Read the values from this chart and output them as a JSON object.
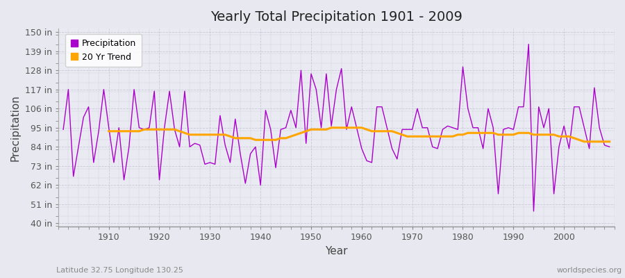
{
  "title": "Yearly Total Precipitation 1901 - 2009",
  "xlabel": "Year",
  "ylabel": "Precipitation",
  "subtitle_left": "Latitude 32.75 Longitude 130.25",
  "subtitle_right": "worldspecies.org",
  "years": [
    1901,
    1902,
    1903,
    1904,
    1905,
    1906,
    1907,
    1908,
    1909,
    1910,
    1911,
    1912,
    1913,
    1914,
    1915,
    1916,
    1917,
    1918,
    1919,
    1920,
    1921,
    1922,
    1923,
    1924,
    1925,
    1926,
    1927,
    1928,
    1929,
    1930,
    1931,
    1932,
    1933,
    1934,
    1935,
    1936,
    1937,
    1938,
    1939,
    1940,
    1941,
    1942,
    1943,
    1944,
    1945,
    1946,
    1947,
    1948,
    1949,
    1950,
    1951,
    1952,
    1953,
    1954,
    1955,
    1956,
    1957,
    1958,
    1959,
    1960,
    1961,
    1962,
    1963,
    1964,
    1965,
    1966,
    1967,
    1968,
    1969,
    1970,
    1971,
    1972,
    1973,
    1974,
    1975,
    1976,
    1977,
    1978,
    1979,
    1980,
    1981,
    1982,
    1983,
    1984,
    1985,
    1986,
    1987,
    1988,
    1989,
    1990,
    1991,
    1992,
    1993,
    1994,
    1995,
    1996,
    1997,
    1998,
    1999,
    2000,
    2001,
    2002,
    2003,
    2004,
    2005,
    2006,
    2007,
    2008,
    2009
  ],
  "precip": [
    94,
    117,
    67,
    84,
    101,
    107,
    75,
    93,
    117,
    95,
    75,
    95,
    65,
    84,
    117,
    95,
    94,
    95,
    116,
    65,
    95,
    116,
    94,
    84,
    116,
    84,
    86,
    85,
    74,
    75,
    74,
    102,
    85,
    75,
    100,
    80,
    63,
    80,
    84,
    62,
    105,
    94,
    72,
    94,
    95,
    105,
    95,
    128,
    86,
    126,
    117,
    95,
    126,
    96,
    117,
    129,
    94,
    107,
    95,
    83,
    76,
    75,
    107,
    107,
    95,
    83,
    77,
    94,
    94,
    94,
    106,
    95,
    95,
    84,
    83,
    94,
    96,
    95,
    94,
    130,
    106,
    95,
    95,
    83,
    106,
    95,
    57,
    94,
    95,
    94,
    107,
    107,
    143,
    47,
    107,
    95,
    106,
    57,
    84,
    96,
    83,
    107,
    107,
    95,
    83,
    118,
    95,
    85,
    84
  ],
  "trend": [
    null,
    null,
    null,
    null,
    null,
    null,
    null,
    null,
    null,
    93,
    93,
    93,
    93,
    93,
    93,
    93,
    94,
    94,
    94,
    94,
    94,
    94,
    94,
    93,
    92,
    91,
    91,
    91,
    91,
    91,
    91,
    91,
    91,
    90,
    89,
    89,
    89,
    89,
    88,
    88,
    88,
    88,
    88,
    89,
    89,
    90,
    91,
    92,
    93,
    94,
    94,
    94,
    94,
    95,
    95,
    95,
    95,
    95,
    95,
    95,
    94,
    93,
    93,
    93,
    93,
    93,
    92,
    91,
    90,
    90,
    90,
    90,
    90,
    90,
    90,
    90,
    90,
    90,
    91,
    91,
    92,
    92,
    92,
    92,
    92,
    92,
    91,
    91,
    91,
    91,
    92,
    92,
    92,
    91,
    91,
    91,
    91,
    91,
    90,
    90,
    90,
    89,
    88,
    87,
    87,
    87,
    87,
    87,
    87
  ],
  "precip_color": "#AA00CC",
  "trend_color": "#FFA500",
  "bg_color": "#E8E8F0",
  "plot_bg_color": "#EAEAF2",
  "grid_color": "#C8C8D8",
  "yticks": [
    40,
    51,
    62,
    73,
    84,
    95,
    106,
    117,
    128,
    139,
    150
  ],
  "ytick_labels": [
    "40 in",
    "51 in",
    "62 in",
    "73 in",
    "84 in",
    "95 in",
    "106 in",
    "117 in",
    "128 in",
    "139 in",
    "150 in"
  ],
  "xticks": [
    1910,
    1920,
    1930,
    1940,
    1950,
    1960,
    1970,
    1980,
    1990,
    2000
  ],
  "ylim": [
    38,
    152
  ],
  "xlim": [
    1900,
    2010
  ]
}
